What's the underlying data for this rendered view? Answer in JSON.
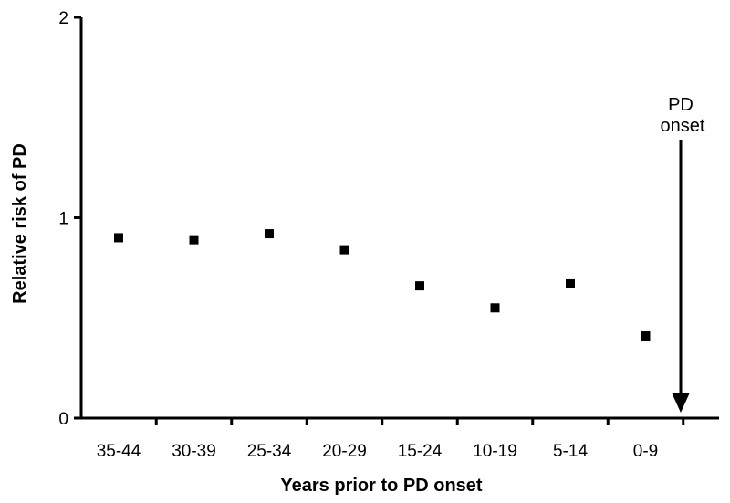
{
  "chart_data": {
    "type": "scatter",
    "title": "",
    "xlabel": "Years prior to PD onset",
    "ylabel": "Relative risk of PD",
    "categories": [
      "35-44",
      "30-39",
      "25-34",
      "20-29",
      "15-24",
      "10-19",
      "5-14",
      "0-9"
    ],
    "values": [
      0.9,
      0.89,
      0.92,
      0.84,
      0.66,
      0.55,
      0.67,
      0.41
    ],
    "ylim": [
      0,
      2
    ],
    "yticks": [
      "0",
      "1",
      "2"
    ],
    "grid": false,
    "annotation": {
      "line1": "PD",
      "line2": "onset",
      "marker": "down-arrow"
    },
    "colors": {
      "points": "#000000",
      "axes": "#000000"
    }
  }
}
